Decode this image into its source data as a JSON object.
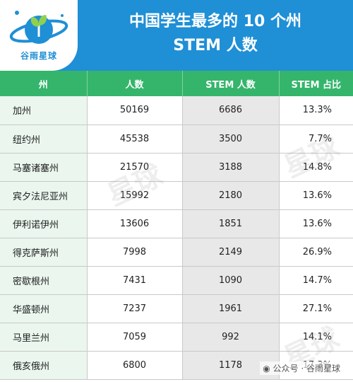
{
  "logo": {
    "text": "谷雨星球"
  },
  "title": {
    "line1": "中国学生最多的 10 个州",
    "line2": "STEM 人数"
  },
  "table": {
    "headers": [
      "州",
      "人数",
      "STEM 人数",
      "STEM 占比"
    ],
    "rows": [
      [
        "加州",
        "50169",
        "6686",
        "13.3%"
      ],
      [
        "纽约州",
        "45538",
        "3500",
        "7.7%"
      ],
      [
        "马塞诸塞州",
        "21570",
        "3188",
        "14.8%"
      ],
      [
        "宾夕法尼亚州",
        "15992",
        "2180",
        "13.6%"
      ],
      [
        "伊利诺伊州",
        "13606",
        "1851",
        "13.6%"
      ],
      [
        "得克萨斯州",
        "7998",
        "2149",
        "26.9%"
      ],
      [
        "密歇根州",
        "7431",
        "1090",
        "14.7%"
      ],
      [
        "华盛顿州",
        "7237",
        "1961",
        "27.1%"
      ],
      [
        "马里兰州",
        "7059",
        "992",
        "14.1%"
      ],
      [
        "俄亥俄州",
        "6800",
        "1178",
        "17.3%"
      ]
    ]
  },
  "watermark": {
    "text": "星球"
  },
  "footer": {
    "wechat": "公众号 · 谷雨星球"
  },
  "colors": {
    "header": "#1f8fd6",
    "table_header": "#35b56b"
  }
}
